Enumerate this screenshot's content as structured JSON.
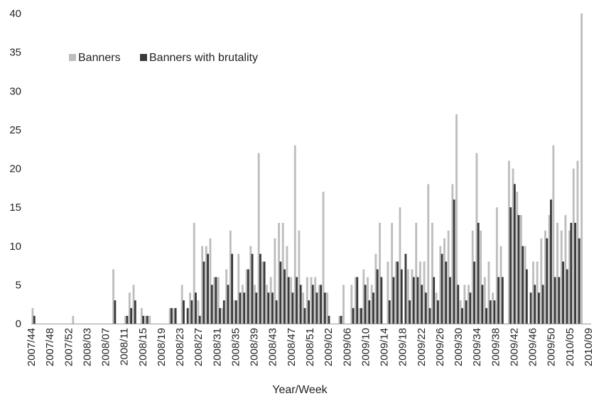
{
  "chart_data": {
    "type": "bar",
    "xlabel": "Year/Week",
    "ylabel": "",
    "ylim": [
      0,
      40
    ],
    "yticks": [
      0,
      5,
      10,
      15,
      20,
      25,
      30,
      35,
      40
    ],
    "grid": false,
    "legend_position": "top-left",
    "x_tick_labels": [
      "2007/44",
      "2007/48",
      "2007/52",
      "2008/03",
      "2008/07",
      "2008/11",
      "2008/15",
      "2008/19",
      "2008/23",
      "2008/27",
      "2008/31",
      "2008/35",
      "2008/39",
      "2008/43",
      "2008/47",
      "2008/51",
      "2009/02",
      "2009/06",
      "2009/10",
      "2009/14",
      "2009/18",
      "2009/22",
      "2009/26",
      "2009/30",
      "2009/34",
      "2009/38",
      "2009/42",
      "2009/46",
      "2009/50",
      "2010/05",
      "2010/09"
    ],
    "series": [
      {
        "name": "Banners",
        "color": "#bdbdbd",
        "values": [
          2,
          0,
          0,
          0,
          0,
          0,
          0,
          0,
          0,
          0,
          1,
          0,
          0,
          0,
          0,
          0,
          0,
          0,
          0,
          0,
          7,
          0,
          0,
          1,
          4,
          5,
          0,
          2,
          1,
          1,
          0,
          0,
          0,
          0,
          2,
          2,
          0,
          5,
          0,
          4,
          13,
          3,
          10,
          10,
          11,
          6,
          6,
          2,
          7,
          12,
          3,
          9,
          5,
          7,
          10,
          5,
          22,
          8,
          5,
          6,
          11,
          13,
          13,
          10,
          6,
          23,
          12,
          4,
          6,
          6,
          6,
          5,
          17,
          4,
          0,
          0,
          1,
          5,
          0,
          5,
          6,
          2,
          7,
          6,
          5,
          9,
          13,
          0,
          8,
          13,
          8,
          15,
          0,
          7,
          7,
          13,
          8,
          8,
          18,
          13,
          4,
          10,
          11,
          12,
          18,
          27,
          3,
          5,
          5,
          12,
          22,
          12,
          6,
          8,
          4,
          15,
          10,
          0,
          21,
          20,
          17,
          14,
          10,
          0,
          8,
          8,
          11,
          12,
          14,
          23,
          13,
          12,
          14,
          12,
          20,
          21,
          40,
          0
        ]
      },
      {
        "name": "Banners with brutality",
        "color": "#3a3a3a",
        "values": [
          1,
          0,
          0,
          0,
          0,
          0,
          0,
          0,
          0,
          0,
          0,
          0,
          0,
          0,
          0,
          0,
          0,
          0,
          0,
          0,
          3,
          0,
          0,
          1,
          2,
          3,
          0,
          1,
          1,
          0,
          0,
          0,
          0,
          0,
          2,
          2,
          0,
          3,
          2,
          3,
          4,
          1,
          8,
          9,
          5,
          6,
          2,
          3,
          5,
          9,
          3,
          4,
          4,
          7,
          9,
          4,
          9,
          8,
          4,
          4,
          3,
          8,
          7,
          6,
          4,
          6,
          5,
          2,
          3,
          5,
          4,
          5,
          4,
          1,
          0,
          0,
          1,
          0,
          0,
          2,
          6,
          2,
          5,
          3,
          4,
          7,
          6,
          0,
          3,
          6,
          8,
          7,
          9,
          3,
          6,
          6,
          5,
          4,
          2,
          6,
          3,
          9,
          8,
          6,
          16,
          5,
          2,
          3,
          4,
          8,
          13,
          5,
          2,
          3,
          3,
          6,
          6,
          0,
          15,
          18,
          14,
          10,
          7,
          4,
          5,
          4,
          5,
          11,
          16,
          6,
          6,
          8,
          7,
          13,
          13,
          11,
          0,
          0
        ]
      }
    ]
  }
}
